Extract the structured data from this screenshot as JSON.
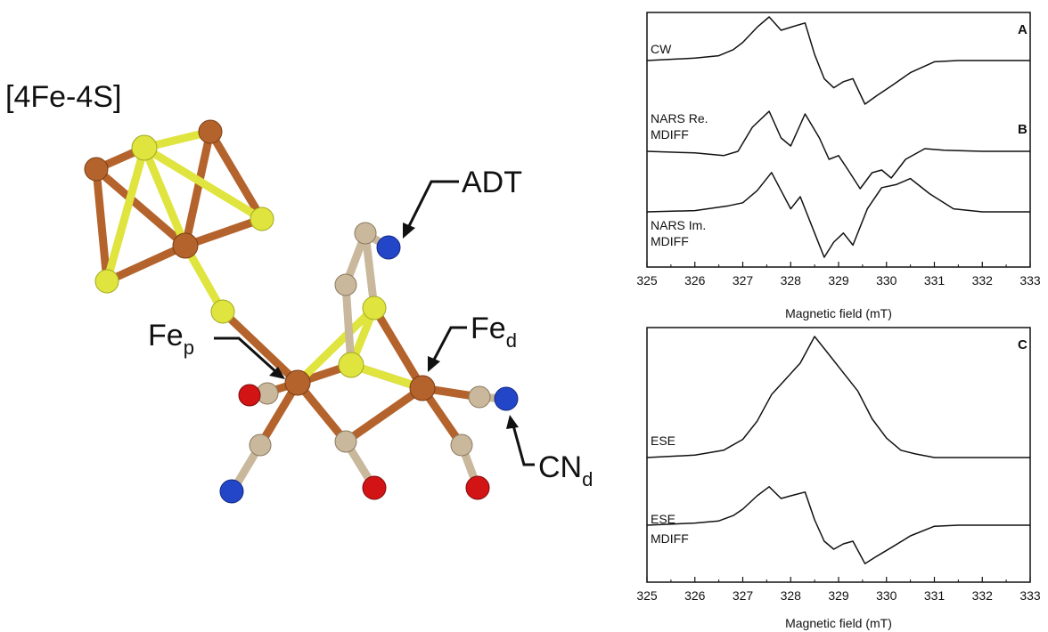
{
  "structure": {
    "cluster_label": "[4Fe-4S]",
    "labels": {
      "adt": "ADT",
      "fe_p_main": "Fe",
      "fe_p_sub": "p",
      "fe_d_main": "Fe",
      "fe_d_sub": "d",
      "cn_d_main": "CN",
      "cn_d_sub": "d"
    },
    "atom_colors": {
      "iron": "#b4632c",
      "sulfur": "#dfe43e",
      "carbon": "#c9b89c",
      "nitrogen": "#2346c8",
      "oxygen": "#d21414"
    }
  },
  "panel_top": {
    "panel_labels": [
      "A",
      "B"
    ],
    "traces": [
      "CW",
      "NARS Re.\nMDIFF",
      "NARS Im.\nMDIFF"
    ],
    "xlabel": "Magnetic field (mT)"
  },
  "panel_bottom": {
    "panel_labels": [
      "C"
    ],
    "traces": [
      "ESE",
      "ESE\nMDIFF"
    ],
    "xlabel": "Magnetic field (mT)"
  },
  "chart_data": [
    {
      "type": "line",
      "panel": "A/B",
      "xlabel": "Magnetic field (mT)",
      "ylabel": "",
      "xlim": [
        325,
        333
      ],
      "xticks": [
        325,
        326,
        327,
        328,
        329,
        330,
        331,
        332,
        333
      ],
      "series": [
        {
          "name": "CW",
          "x": [
            325,
            326,
            326.5,
            326.8,
            327.0,
            327.3,
            327.55,
            327.8,
            328.0,
            328.3,
            328.5,
            328.7,
            328.9,
            329.1,
            329.3,
            329.55,
            329.8,
            330.1,
            330.5,
            331.0,
            331.5,
            332,
            333
          ],
          "y": [
            0,
            0.04,
            0.08,
            0.18,
            0.3,
            0.55,
            0.72,
            0.5,
            0.55,
            0.62,
            0.1,
            -0.3,
            -0.45,
            -0.35,
            -0.3,
            -0.72,
            -0.58,
            -0.42,
            -0.2,
            -0.02,
            0.0,
            0.0,
            0
          ]
        },
        {
          "name": "NARS Re. MDIFF",
          "x": [
            325,
            326,
            326.6,
            326.9,
            327.2,
            327.55,
            327.8,
            328.0,
            328.3,
            328.6,
            328.8,
            329.0,
            329.2,
            329.45,
            329.7,
            329.9,
            330.1,
            330.4,
            330.8,
            331.2,
            332,
            333
          ],
          "y": [
            0,
            -0.03,
            -0.08,
            0.0,
            0.45,
            0.75,
            0.25,
            0.1,
            0.7,
            0.25,
            -0.15,
            -0.08,
            -0.35,
            -0.7,
            -0.4,
            -0.35,
            -0.5,
            -0.15,
            0.05,
            0.02,
            0,
            0
          ]
        },
        {
          "name": "NARS Im. MDIFF",
          "x": [
            325,
            326,
            326.7,
            327.0,
            327.3,
            327.6,
            327.8,
            328.0,
            328.2,
            328.5,
            328.7,
            328.9,
            329.1,
            329.3,
            329.6,
            329.9,
            330.2,
            330.5,
            330.9,
            331.4,
            332,
            333
          ],
          "y": [
            0,
            0.02,
            0.1,
            0.15,
            0.35,
            0.65,
            0.35,
            0.05,
            0.25,
            -0.35,
            -0.75,
            -0.5,
            -0.35,
            -0.55,
            0.05,
            0.4,
            0.45,
            0.55,
            0.3,
            0.05,
            0.0,
            0
          ]
        }
      ]
    },
    {
      "type": "line",
      "panel": "C",
      "xlabel": "Magnetic field (mT)",
      "ylabel": "",
      "xlim": [
        325,
        333
      ],
      "xticks": [
        325,
        326,
        327,
        328,
        329,
        330,
        331,
        332,
        333
      ],
      "series": [
        {
          "name": "ESE",
          "x": [
            325,
            326,
            326.6,
            327.0,
            327.3,
            327.6,
            327.9,
            328.2,
            328.5,
            328.8,
            329.1,
            329.4,
            329.7,
            330.0,
            330.3,
            330.6,
            331.0,
            332,
            333
          ],
          "y": [
            0,
            0.02,
            0.06,
            0.15,
            0.3,
            0.52,
            0.65,
            0.78,
            1.0,
            0.85,
            0.7,
            0.55,
            0.32,
            0.16,
            0.06,
            0.03,
            0.0,
            0,
            0
          ]
        },
        {
          "name": "ESE MDIFF",
          "x": [
            325,
            326,
            326.5,
            326.8,
            327.0,
            327.3,
            327.55,
            327.8,
            328.0,
            328.3,
            328.5,
            328.7,
            328.9,
            329.1,
            329.3,
            329.55,
            329.8,
            330.1,
            330.5,
            331.0,
            331.5,
            332,
            333
          ],
          "y": [
            0,
            0.04,
            0.08,
            0.18,
            0.3,
            0.55,
            0.72,
            0.5,
            0.55,
            0.62,
            0.1,
            -0.3,
            -0.45,
            -0.35,
            -0.3,
            -0.72,
            -0.58,
            -0.42,
            -0.2,
            -0.02,
            0.0,
            0.0,
            0
          ]
        }
      ]
    }
  ]
}
